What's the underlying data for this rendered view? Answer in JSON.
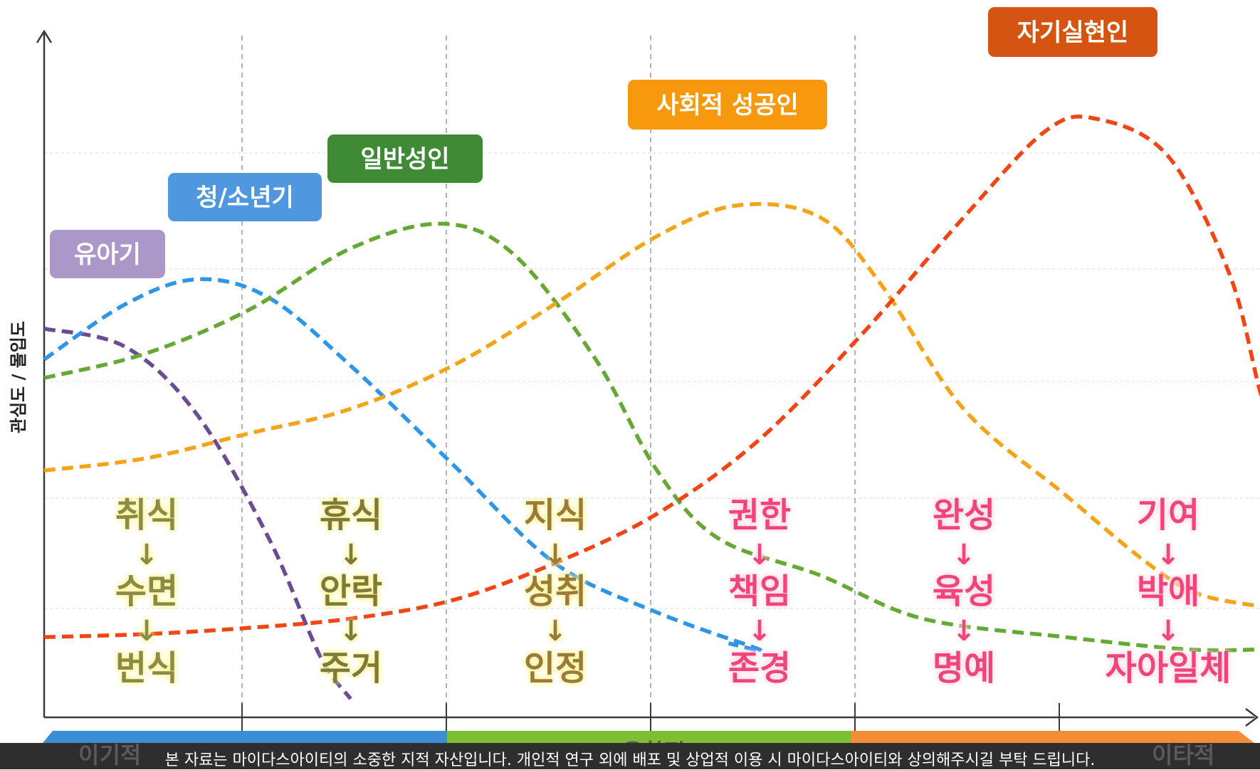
{
  "chart_data": {
    "type": "line",
    "ylabel": "관심도 / 몰입도",
    "x_range": [
      0,
      6
    ],
    "y_range": [
      0,
      100
    ],
    "grid": true,
    "series": [
      {
        "name": "유아기",
        "color": "#6a4c93",
        "points": [
          [
            0,
            60
          ],
          [
            0.4,
            57
          ],
          [
            0.75,
            46
          ],
          [
            1.1,
            26
          ],
          [
            1.35,
            7
          ],
          [
            1.5,
            0
          ]
        ]
      },
      {
        "name": "청/소년기",
        "color": "#2f95e6",
        "points": [
          [
            0,
            55
          ],
          [
            0.4,
            64
          ],
          [
            0.75,
            68
          ],
          [
            1.1,
            65
          ],
          [
            1.5,
            54
          ],
          [
            2,
            38
          ],
          [
            2.5,
            22
          ],
          [
            3,
            14
          ],
          [
            3.5,
            8
          ],
          [
            3.35,
            9
          ]
        ]
      },
      {
        "name": "일반성인",
        "color": "#66a834",
        "points": [
          [
            0,
            52
          ],
          [
            0.5,
            56
          ],
          [
            1,
            63
          ],
          [
            1.5,
            73
          ],
          [
            1.95,
            77
          ],
          [
            2.3,
            72
          ],
          [
            2.7,
            55
          ],
          [
            3,
            37
          ],
          [
            3.3,
            26
          ],
          [
            3.8,
            20
          ],
          [
            4.3,
            13
          ],
          [
            5,
            10
          ],
          [
            5.6,
            8
          ],
          [
            5.95,
            8
          ]
        ]
      },
      {
        "name": "사회적 성공인",
        "color": "#f5a319",
        "points": [
          [
            0,
            37
          ],
          [
            0.5,
            39
          ],
          [
            1,
            43
          ],
          [
            1.5,
            47
          ],
          [
            2,
            54
          ],
          [
            2.5,
            64
          ],
          [
            3,
            75
          ],
          [
            3.4,
            80
          ],
          [
            3.8,
            78
          ],
          [
            4.1,
            67
          ],
          [
            4.5,
            47
          ],
          [
            5,
            33
          ],
          [
            5.4,
            22
          ],
          [
            5.65,
            17
          ],
          [
            5.95,
            15
          ]
        ]
      },
      {
        "name": "자기실현인",
        "color": "#f24515",
        "points": [
          [
            0,
            10
          ],
          [
            0.5,
            10.5
          ],
          [
            1,
            11.5
          ],
          [
            1.5,
            13
          ],
          [
            2,
            16
          ],
          [
            2.5,
            22
          ],
          [
            3,
            30
          ],
          [
            3.5,
            42
          ],
          [
            4,
            59
          ],
          [
            4.5,
            78
          ],
          [
            4.9,
            92
          ],
          [
            5.15,
            94
          ],
          [
            5.5,
            88
          ],
          [
            5.8,
            69
          ],
          [
            5.95,
            50
          ],
          [
            6.05,
            39
          ]
        ]
      }
    ],
    "stages": [
      {
        "name": "유아기",
        "color": "#ab98c9",
        "values": [
          "취식",
          "수면",
          "번식"
        ],
        "value_color": "#8a8a48"
      },
      {
        "name": "청/소년기",
        "color": "#4f97de",
        "values": [
          "휴식",
          "안락",
          "주거"
        ],
        "value_color": "#7e7a3c"
      },
      {
        "name": "일반성인",
        "color": "#3f8a35",
        "values": [
          "지식",
          "성취",
          "인정"
        ],
        "value_color": "#9a7a3c"
      },
      {
        "name": "사회적 성공인",
        "color": "#f7990d",
        "values": [
          "권한",
          "책임",
          "존경"
        ],
        "value_color": "#f0457a"
      },
      {
        "name": "자기실현인",
        "color": "#d55411",
        "values": [
          "완성",
          "육성",
          "명예"
        ],
        "value_color": "#f0457a"
      },
      {
        "name": "",
        "color": "",
        "values": [
          "기여",
          "박애",
          "자아일체"
        ],
        "value_color": "#f0457a"
      }
    ],
    "arrow_glyph": "↓",
    "x_spectrum": {
      "left": "이기적",
      "middle": "융합적",
      "right": "이타적",
      "colors": [
        "#3a8ed8",
        "#7cbf32",
        "#f48d36"
      ]
    }
  },
  "footer": {
    "notice": "본 자료는 마이다스아이티의 소중한 지적 자산입니다. 개인적 연구 외에 배포 및 상업적 이용 시 마이다스아이티와 상의해주시길 부탁 드립니다."
  }
}
